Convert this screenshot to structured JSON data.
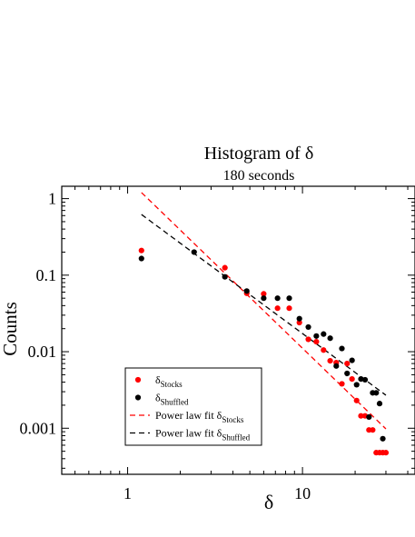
{
  "chart_data": {
    "type": "scatter",
    "title": "Histogram of δ",
    "subtitle": "180 seconds",
    "xlabel": "δ",
    "ylabel": "Counts",
    "x_scale": "log",
    "y_scale": "log",
    "xlim": [
      0.42,
      44
    ],
    "ylim": [
      0.00025,
      1.45
    ],
    "grid": false,
    "legend_position": "bottom-left",
    "x_ticks": [
      {
        "value": 1,
        "label": "1"
      },
      {
        "value": 10,
        "label": "10"
      }
    ],
    "y_ticks": [
      {
        "value": 1,
        "label": "1"
      },
      {
        "value": 0.1,
        "label": "0.1"
      },
      {
        "value": 0.01,
        "label": "0.01"
      },
      {
        "value": 0.001,
        "label": "0.001"
      }
    ],
    "series": [
      {
        "name": "δ_Stocks",
        "legend_main": "δ",
        "legend_sub": "Stocks",
        "kind": "points",
        "color": "#ff0000",
        "points": [
          [
            1.2,
            0.21
          ],
          [
            3.6,
            0.125
          ],
          [
            4.8,
            0.058
          ],
          [
            6.0,
            0.057
          ],
          [
            7.2,
            0.037
          ],
          [
            8.4,
            0.037
          ],
          [
            9.6,
            0.024
          ],
          [
            10.8,
            0.0145
          ],
          [
            12.0,
            0.0135
          ],
          [
            13.2,
            0.0105
          ],
          [
            14.4,
            0.0076
          ],
          [
            15.6,
            0.0072
          ],
          [
            16.8,
            0.0038
          ],
          [
            18.0,
            0.007
          ],
          [
            19.2,
            0.0044
          ],
          [
            20.4,
            0.0023
          ],
          [
            21.6,
            0.00145
          ],
          [
            22.8,
            0.00145
          ],
          [
            24.0,
            0.00095
          ],
          [
            25.2,
            0.00095
          ],
          [
            26.4,
            0.00048
          ],
          [
            27.6,
            0.00048
          ],
          [
            28.8,
            0.00048
          ],
          [
            30.0,
            0.00048
          ]
        ]
      },
      {
        "name": "δ_Shuffled",
        "legend_main": "δ",
        "legend_sub": "Shuffled",
        "kind": "points",
        "color": "#000000",
        "points": [
          [
            1.2,
            0.165
          ],
          [
            2.4,
            0.2
          ],
          [
            3.6,
            0.095
          ],
          [
            4.8,
            0.062
          ],
          [
            6.0,
            0.05
          ],
          [
            7.2,
            0.05
          ],
          [
            8.4,
            0.05
          ],
          [
            9.6,
            0.027
          ],
          [
            10.8,
            0.021
          ],
          [
            12.0,
            0.016
          ],
          [
            13.2,
            0.017
          ],
          [
            14.4,
            0.015
          ],
          [
            15.6,
            0.0065
          ],
          [
            16.8,
            0.011
          ],
          [
            18.0,
            0.0052
          ],
          [
            19.2,
            0.0077
          ],
          [
            20.4,
            0.0037
          ],
          [
            21.6,
            0.0044
          ],
          [
            22.8,
            0.0043
          ],
          [
            24.0,
            0.0014
          ],
          [
            25.2,
            0.0029
          ],
          [
            26.4,
            0.0029
          ],
          [
            27.6,
            0.0021
          ],
          [
            28.8,
            0.00073
          ]
        ]
      },
      {
        "name": "Power law fit δ_Stocks",
        "legend_main": "Power law fit δ",
        "legend_sub": "Stocks",
        "kind": "dashed-line",
        "color": "#ff0000",
        "points": [
          [
            1.2,
            1.2
          ],
          [
            30.0,
            0.00098
          ]
        ]
      },
      {
        "name": "Power law fit δ_Shuffled",
        "legend_main": "Power law fit δ",
        "legend_sub": "Shuffled",
        "kind": "dashed-line",
        "color": "#000000",
        "points": [
          [
            1.2,
            0.62
          ],
          [
            30.0,
            0.0027
          ]
        ]
      }
    ]
  }
}
